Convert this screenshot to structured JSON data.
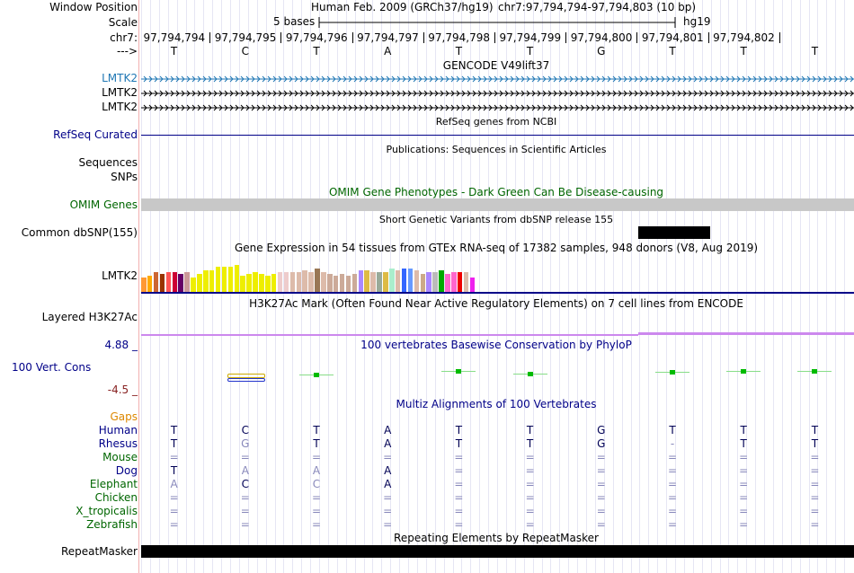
{
  "labels": {
    "window_position": "Window Position",
    "scale": "Scale",
    "chrom": "chr7:",
    "strand": "--->",
    "assembly": "Human Feb. 2009 (GRCh37/hg19)",
    "position": "chr7:97,794,794-97,794,803 (10 bp)",
    "scale_bar": "5 bases",
    "db": "hg19"
  },
  "positions": [
    "97,794,794",
    "97,794,795",
    "97,794,796",
    "97,794,797",
    "97,794,798",
    "97,794,799",
    "97,794,800",
    "97,794,801",
    "97,794,802"
  ],
  "bases": [
    "T",
    "C",
    "T",
    "A",
    "T",
    "T",
    "G",
    "T",
    "T",
    "T"
  ],
  "tracks": {
    "gencode": {
      "title": "GENCODE V49lift37",
      "genes": [
        "LMTK2",
        "LMTK2",
        "LMTK2"
      ]
    },
    "refseq": {
      "title": "RefSeq genes from NCBI",
      "label": "RefSeq Curated"
    },
    "pubs": {
      "title": "Publications: Sequences in Scientific Articles",
      "labels": [
        "Sequences",
        "SNPs"
      ]
    },
    "omim": {
      "title": "OMIM Gene Phenotypes - Dark Green Can Be Disease-causing",
      "label": "OMIM Genes"
    },
    "dbsnp": {
      "title": "Short Genetic Variants from dbSNP release 155",
      "label": "Common dbSNP(155)"
    },
    "gtex": {
      "title": "Gene Expression in 54 tissues from GTEx RNA-seq of 17382 samples, 948 donors (V8, Aug 2019)",
      "label": "LMTK2",
      "bars": [
        {
          "v": 0.44,
          "c": "#ff9933"
        },
        {
          "v": 0.5,
          "c": "#ffaa00"
        },
        {
          "v": 0.61,
          "c": "#cc6633"
        },
        {
          "v": 0.55,
          "c": "#993300"
        },
        {
          "v": 0.61,
          "c": "#ff5555"
        },
        {
          "v": 0.61,
          "c": "#cc0033"
        },
        {
          "v": 0.55,
          "c": "#660066"
        },
        {
          "v": 0.61,
          "c": "#cc9999"
        },
        {
          "v": 0.44,
          "c": "#eeee00"
        },
        {
          "v": 0.55,
          "c": "#eeee00"
        },
        {
          "v": 0.66,
          "c": "#eeee00"
        },
        {
          "v": 0.66,
          "c": "#eeee00"
        },
        {
          "v": 0.77,
          "c": "#eeee00"
        },
        {
          "v": 0.77,
          "c": "#eeee00"
        },
        {
          "v": 0.77,
          "c": "#eeee00"
        },
        {
          "v": 0.83,
          "c": "#eeee00"
        },
        {
          "v": 0.5,
          "c": "#eeee00"
        },
        {
          "v": 0.55,
          "c": "#eeee00"
        },
        {
          "v": 0.61,
          "c": "#eeee00"
        },
        {
          "v": 0.55,
          "c": "#eeee00"
        },
        {
          "v": 0.5,
          "c": "#eeee00"
        },
        {
          "v": 0.55,
          "c": "#eeee00"
        },
        {
          "v": 0.61,
          "c": "#eecccc"
        },
        {
          "v": 0.61,
          "c": "#eecccc"
        },
        {
          "v": 0.61,
          "c": "#ddbbaa"
        },
        {
          "v": 0.61,
          "c": "#ddbbaa"
        },
        {
          "v": 0.66,
          "c": "#ddbbaa"
        },
        {
          "v": 0.61,
          "c": "#ddbbaa"
        },
        {
          "v": 0.72,
          "c": "#997755"
        },
        {
          "v": 0.61,
          "c": "#ddbbaa"
        },
        {
          "v": 0.55,
          "c": "#ccaa99"
        },
        {
          "v": 0.5,
          "c": "#ccaa99"
        },
        {
          "v": 0.55,
          "c": "#ccaa99"
        },
        {
          "v": 0.5,
          "c": "#ccaa99"
        },
        {
          "v": 0.55,
          "c": "#ccaa99"
        },
        {
          "v": 0.66,
          "c": "#aa88ff"
        },
        {
          "v": 0.66,
          "c": "#ddbb44"
        },
        {
          "v": 0.61,
          "c": "#ddbbaa"
        },
        {
          "v": 0.61,
          "c": "#99aa99"
        },
        {
          "v": 0.61,
          "c": "#ddbb44"
        },
        {
          "v": 0.72,
          "c": "#aaeecc"
        },
        {
          "v": 0.66,
          "c": "#ddbbaa"
        },
        {
          "v": 0.72,
          "c": "#3366ff"
        },
        {
          "v": 0.72,
          "c": "#6699ff"
        },
        {
          "v": 0.66,
          "c": "#ddbbaa"
        },
        {
          "v": 0.55,
          "c": "#ccaa88"
        },
        {
          "v": 0.61,
          "c": "#aa88ff"
        },
        {
          "v": 0.61,
          "c": "#bbbbbb"
        },
        {
          "v": 0.66,
          "c": "#00aa00"
        },
        {
          "v": 0.55,
          "c": "#ff66cc"
        },
        {
          "v": 0.61,
          "c": "#ff66cc"
        },
        {
          "v": 0.61,
          "c": "#ee0000"
        },
        {
          "v": 0.61,
          "c": "#ddbbaa"
        },
        {
          "v": 0.44,
          "c": "#ee22ee"
        }
      ]
    },
    "h3k27ac": {
      "title": "H3K27Ac Mark (Often Found Near Active Regulatory Elements) on 7 cell lines from ENCODE",
      "label": "Layered H3K27Ac"
    },
    "phylop": {
      "title": "100 vertebrates Basewise Conservation by PhyloP",
      "label": "100 Vert. Cons",
      "max": "4.88 _",
      "min": "-4.5 _"
    },
    "multiz": {
      "title": "Multiz Alignments of 100 Vertebrates",
      "gaps": "Gaps",
      "species": [
        {
          "name": "Human",
          "color": "#000088",
          "bases": [
            "T",
            "C",
            "T",
            "A",
            "T",
            "T",
            "G",
            "T",
            "T",
            "T"
          ],
          "shade": [
            0,
            0,
            0,
            0,
            0,
            0,
            0,
            0,
            0,
            0
          ]
        },
        {
          "name": "Rhesus",
          "color": "#000088",
          "bases": [
            "T",
            "G",
            "T",
            "A",
            "T",
            "T",
            "G",
            "-",
            "T",
            "T"
          ],
          "shade": [
            0,
            1,
            0,
            0,
            0,
            0,
            0,
            1,
            0,
            0
          ]
        },
        {
          "name": "Mouse",
          "color": "#006600",
          "bases": [
            "=",
            "=",
            "=",
            "=",
            "=",
            "=",
            "=",
            "=",
            "=",
            "="
          ],
          "shade": [
            1,
            1,
            1,
            1,
            1,
            1,
            1,
            1,
            1,
            1
          ]
        },
        {
          "name": "Dog",
          "color": "#000088",
          "bases": [
            "T",
            "A",
            "A",
            "A",
            "=",
            "=",
            "=",
            "=",
            "=",
            "="
          ],
          "shade": [
            0,
            1,
            1,
            0,
            1,
            1,
            1,
            1,
            1,
            1
          ]
        },
        {
          "name": "Elephant",
          "color": "#006600",
          "bases": [
            "A",
            "C",
            "C",
            "A",
            "=",
            "=",
            "=",
            "=",
            "=",
            "="
          ],
          "shade": [
            1,
            0,
            1,
            0,
            1,
            1,
            1,
            1,
            1,
            1
          ]
        },
        {
          "name": "Chicken",
          "color": "#006600",
          "bases": [
            "=",
            "=",
            "=",
            "=",
            "=",
            "=",
            "=",
            "=",
            "=",
            "="
          ],
          "shade": [
            1,
            1,
            1,
            1,
            1,
            1,
            1,
            1,
            1,
            1
          ]
        },
        {
          "name": "X_tropicalis",
          "color": "#006600",
          "bases": [
            "=",
            "=",
            "=",
            "=",
            "=",
            "=",
            "=",
            "=",
            "=",
            "="
          ],
          "shade": [
            1,
            1,
            1,
            1,
            1,
            1,
            1,
            1,
            1,
            1
          ]
        },
        {
          "name": "Zebrafish",
          "color": "#006600",
          "bases": [
            "=",
            "=",
            "=",
            "=",
            "=",
            "=",
            "=",
            "=",
            "=",
            "="
          ],
          "shade": [
            1,
            1,
            1,
            1,
            1,
            1,
            1,
            1,
            1,
            1
          ]
        }
      ]
    },
    "rmsk": {
      "title": "Repeating Elements by RepeatMasker",
      "label": "RepeatMasker"
    }
  },
  "colors": {
    "gencode": "#1f77b4",
    "navy": "#000088",
    "omim_green": "#006600",
    "omim_bar": "#c8c8c8",
    "gaps": "#dd8800",
    "phylop_max": "#000088",
    "phylop_min": "#882222",
    "h3k27ac": "#cc88ee"
  }
}
